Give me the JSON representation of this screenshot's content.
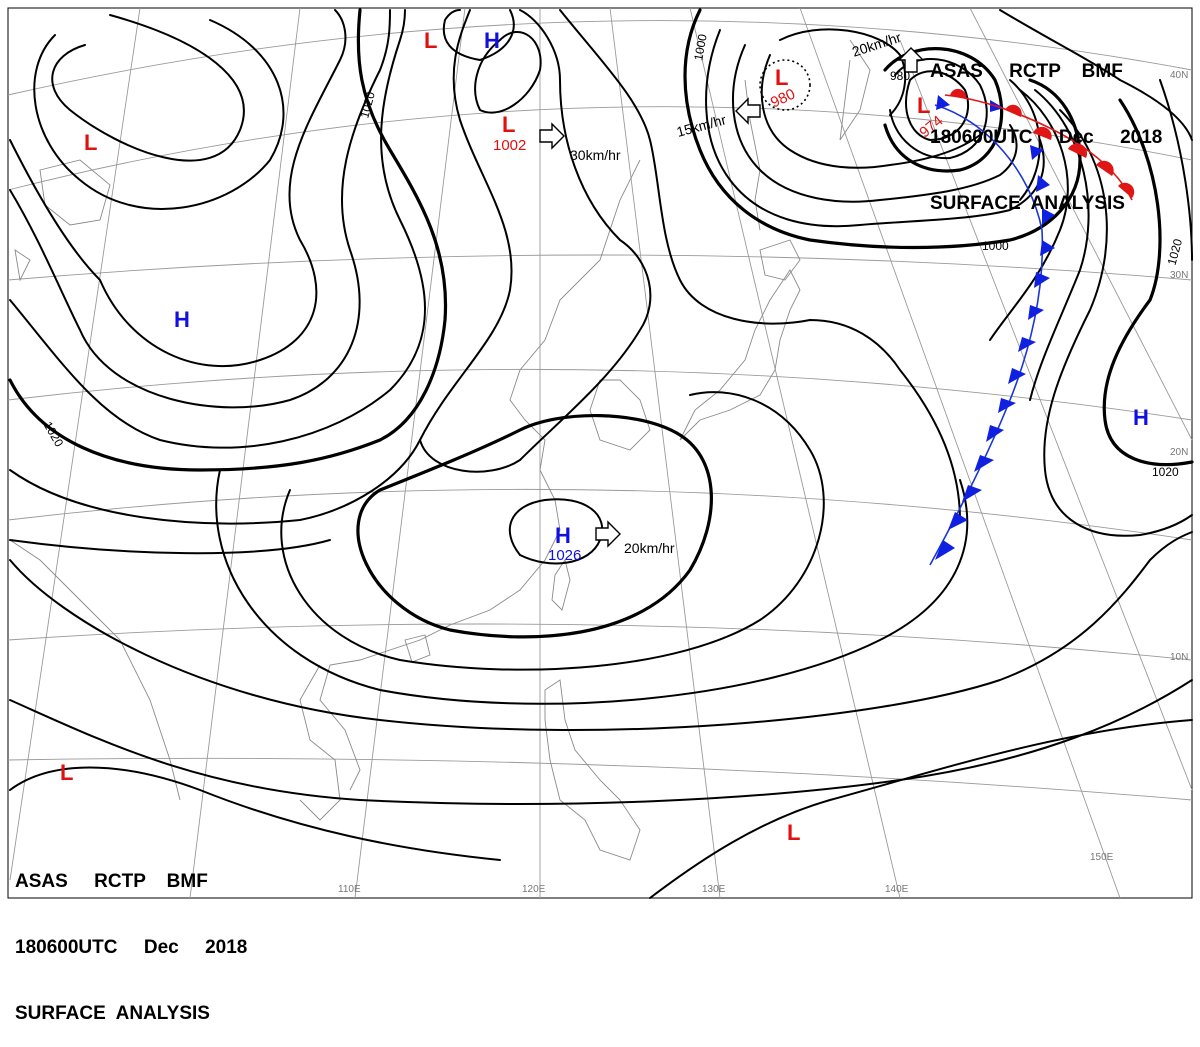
{
  "header_top": {
    "line1": "ASAS     RCTP    BMF",
    "line2": "180600UTC     Dec     2018",
    "line3": "SURFACE  ANALYSIS"
  },
  "header_bottom": {
    "line1": "ASAS     RCTP    BMF",
    "line2": "180600UTC     Dec     2018",
    "line3": "SURFACE  ANALYSIS"
  },
  "pressure_systems": [
    {
      "type": "L",
      "value": ""
    },
    {
      "type": "L",
      "value": ""
    },
    {
      "type": "H",
      "value": ""
    },
    {
      "type": "L",
      "value": "1002"
    },
    {
      "type": "H",
      "value": ""
    },
    {
      "type": "L",
      "value": "980"
    },
    {
      "type": "L",
      "value": "974"
    },
    {
      "type": "H",
      "value": "1026"
    },
    {
      "type": "H",
      "value": ""
    },
    {
      "type": "L",
      "value": ""
    },
    {
      "type": "L",
      "value": ""
    }
  ],
  "movement_labels": [
    "30km/hr",
    "15km/hr",
    "20km/hr",
    "20km/hr"
  ],
  "isobar_labels": [
    "1020",
    "1020",
    "1000",
    "1000",
    "980",
    "1020",
    "1020"
  ],
  "latitude_labels": [
    "40N",
    "30N",
    "20N",
    "10N"
  ],
  "longitude_labels": [
    "110E",
    "120E",
    "130E",
    "140E",
    "150E"
  ],
  "colors": {
    "low": "#e01010",
    "high": "#1010e0",
    "cold_front": "#1020e0",
    "warm_front": "#e01515",
    "isobar": "#000000",
    "grid": "#9a9a9a"
  },
  "fronts": [
    "cold-front",
    "warm-front"
  ]
}
